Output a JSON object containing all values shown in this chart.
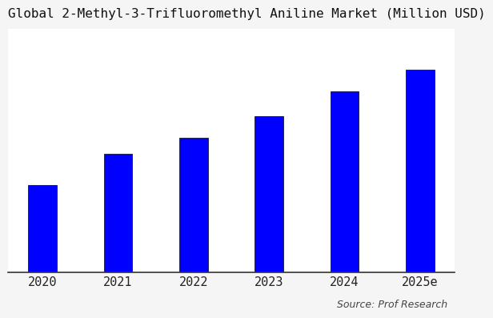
{
  "title": "Global 2-Methyl-3-Trifluoromethyl Aniline Market (Million USD)",
  "categories": [
    "2020",
    "2021",
    "2022",
    "2023",
    "2024",
    "2025e"
  ],
  "values": [
    28,
    38,
    43,
    50,
    58,
    65
  ],
  "bar_color": "#0000FF",
  "background_color": "#f5f5f5",
  "plot_bg_color": "#ffffff",
  "source_text": "Source: Prof Research",
  "title_fontsize": 11.5,
  "tick_fontsize": 11,
  "source_fontsize": 9,
  "bar_width": 0.38,
  "ylim_max": 78
}
